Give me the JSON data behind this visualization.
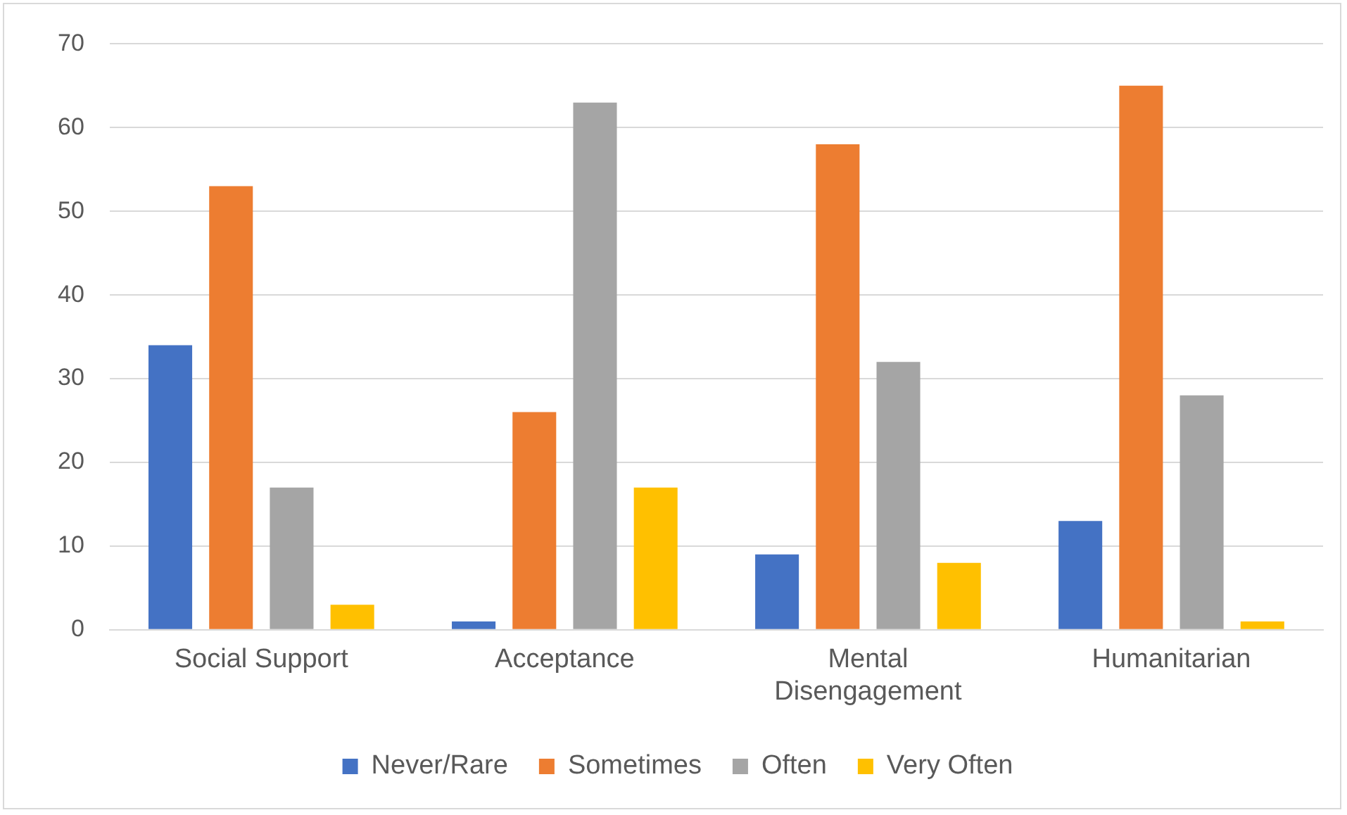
{
  "chart_data": {
    "type": "bar",
    "categories": [
      "Social Support",
      "Acceptance",
      "Mental Disengagement",
      "Humanitarian"
    ],
    "series": [
      {
        "name": "Never/Rare",
        "color": "#4472c4",
        "values": [
          34,
          1,
          9,
          13
        ]
      },
      {
        "name": "Sometimes",
        "color": "#ed7d31",
        "values": [
          53,
          26,
          58,
          65
        ]
      },
      {
        "name": "Often",
        "color": "#a5a5a5",
        "values": [
          17,
          63,
          32,
          28
        ]
      },
      {
        "name": "Very Often",
        "color": "#ffc000",
        "values": [
          3,
          17,
          8,
          1
        ]
      }
    ],
    "ylim": [
      0,
      70
    ],
    "yticks": [
      0,
      10,
      20,
      30,
      40,
      50,
      60,
      70
    ],
    "grid": "y",
    "legend": "bottom"
  }
}
